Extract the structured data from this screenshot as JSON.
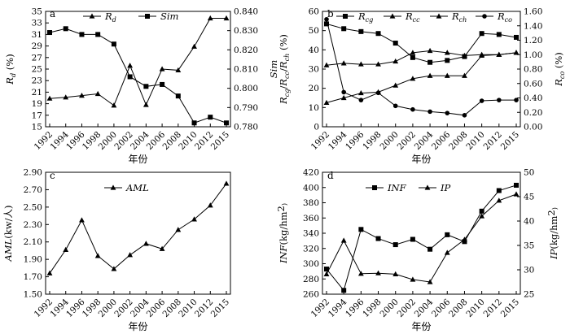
{
  "chart_data": [
    {
      "panel": "a",
      "type": "line",
      "x": [
        "1992",
        "1994",
        "1996",
        "1998",
        "2000",
        "2002",
        "2004",
        "2006",
        "2008",
        "2010",
        "2012",
        "2015"
      ],
      "xlabel": "年份",
      "ylabel_left": "Rd (%)",
      "ylabel_right": "Sim",
      "ylim_left": [
        15,
        35
      ],
      "ylim_right": [
        0.78,
        0.84
      ],
      "yticks_left": [
        "15",
        "17",
        "19",
        "21",
        "23",
        "25",
        "27",
        "29",
        "31",
        "33",
        "35"
      ],
      "yticks_right": [
        "0.780",
        "0.790",
        "0.800",
        "0.810",
        "0.820",
        "0.830",
        "0.840"
      ],
      "series": [
        {
          "name": "Rd",
          "axis": "left",
          "marker": "triangle",
          "values": [
            19.9,
            20.1,
            20.4,
            20.7,
            18.7,
            25.6,
            18.8,
            25.0,
            24.8,
            28.9,
            33.8,
            33.8
          ]
        },
        {
          "name": "Sim",
          "axis": "right",
          "marker": "square",
          "values": [
            0.829,
            0.831,
            0.828,
            0.828,
            0.823,
            0.806,
            0.801,
            0.802,
            0.796,
            0.782,
            0.785,
            0.782
          ]
        }
      ]
    },
    {
      "panel": "b",
      "type": "line",
      "x": [
        "1992",
        "1994",
        "1996",
        "1998",
        "2000",
        "2002",
        "2004",
        "2006",
        "2008",
        "2010",
        "2012",
        "2015"
      ],
      "xlabel": "年份",
      "ylabel_left": "Rcg /Rcc /Rch (%)",
      "ylabel_right": "Rco (%)",
      "ylim_left": [
        0,
        60
      ],
      "ylim_right": [
        0.0,
        1.6
      ],
      "yticks_left": [
        "0",
        "10",
        "20",
        "30",
        "40",
        "50",
        "60"
      ],
      "yticks_right": [
        "0.00",
        "0.20",
        "0.40",
        "0.60",
        "0.80",
        "1.00",
        "1.20",
        "1.40",
        "1.60"
      ],
      "series": [
        {
          "name": "Rcg",
          "axis": "left",
          "marker": "square",
          "values": [
            53.5,
            51.0,
            49.5,
            48.5,
            43.5,
            36.0,
            33.5,
            34.5,
            36.5,
            48.5,
            48.0,
            46.5
          ]
        },
        {
          "name": "Rcc",
          "axis": "left",
          "marker": "triangle",
          "values": [
            32.0,
            33.0,
            32.5,
            32.5,
            34.0,
            38.5,
            39.5,
            38.5,
            37.0,
            37.5,
            37.5,
            38.5
          ]
        },
        {
          "name": "Rch",
          "axis": "left",
          "marker": "triangle",
          "values": [
            12.5,
            15.0,
            17.5,
            18.0,
            21.5,
            25.0,
            26.5,
            26.5,
            26.5,
            37.0,
            37.5,
            38.5
          ]
        },
        {
          "name": "Rco",
          "axis": "right",
          "marker": "dot",
          "values": [
            1.49,
            0.48,
            0.37,
            0.47,
            0.29,
            0.24,
            0.21,
            0.19,
            0.16,
            0.36,
            0.37,
            0.37
          ]
        }
      ]
    },
    {
      "panel": "c",
      "type": "line",
      "x": [
        "1992",
        "1994",
        "1996",
        "1998",
        "2000",
        "2002",
        "2004",
        "2006",
        "2008",
        "2010",
        "2012",
        "2015"
      ],
      "xlabel": "年份",
      "ylabel_left": "AML(kw/人)",
      "ylim_left": [
        1.5,
        2.9
      ],
      "yticks_left": [
        "1.50",
        "1.70",
        "1.90",
        "2.10",
        "2.30",
        "2.50",
        "2.70",
        "2.90"
      ],
      "series": [
        {
          "name": "AML",
          "axis": "left",
          "marker": "triangle",
          "values": [
            1.74,
            2.01,
            2.35,
            1.94,
            1.79,
            1.95,
            2.08,
            2.02,
            2.24,
            2.36,
            2.52,
            2.77
          ]
        }
      ]
    },
    {
      "panel": "d",
      "type": "line",
      "x": [
        "1992",
        "1994",
        "1996",
        "1998",
        "2000",
        "2002",
        "2004",
        "2006",
        "2008",
        "2010",
        "2012",
        "2015"
      ],
      "xlabel": "年份",
      "ylabel_left": "INF(kg/hm²)",
      "ylabel_right": "IP(kg/hm²)",
      "ylim_left": [
        260,
        420
      ],
      "ylim_right": [
        25,
        50
      ],
      "yticks_left": [
        "260",
        "280",
        "300",
        "320",
        "340",
        "360",
        "380",
        "400",
        "420"
      ],
      "yticks_right": [
        "25",
        "30",
        "35",
        "40",
        "45",
        "50"
      ],
      "series": [
        {
          "name": "INF",
          "axis": "left",
          "marker": "square",
          "values": [
            293,
            265,
            345,
            333,
            325,
            332,
            319,
            338,
            329,
            369,
            396,
            403
          ]
        },
        {
          "name": "IP",
          "axis": "right",
          "marker": "triangle",
          "values": [
            29.1,
            36.0,
            29.2,
            29.3,
            29.1,
            28.0,
            27.5,
            33.5,
            36.2,
            41.0,
            44.2,
            45.5
          ]
        }
      ]
    }
  ]
}
